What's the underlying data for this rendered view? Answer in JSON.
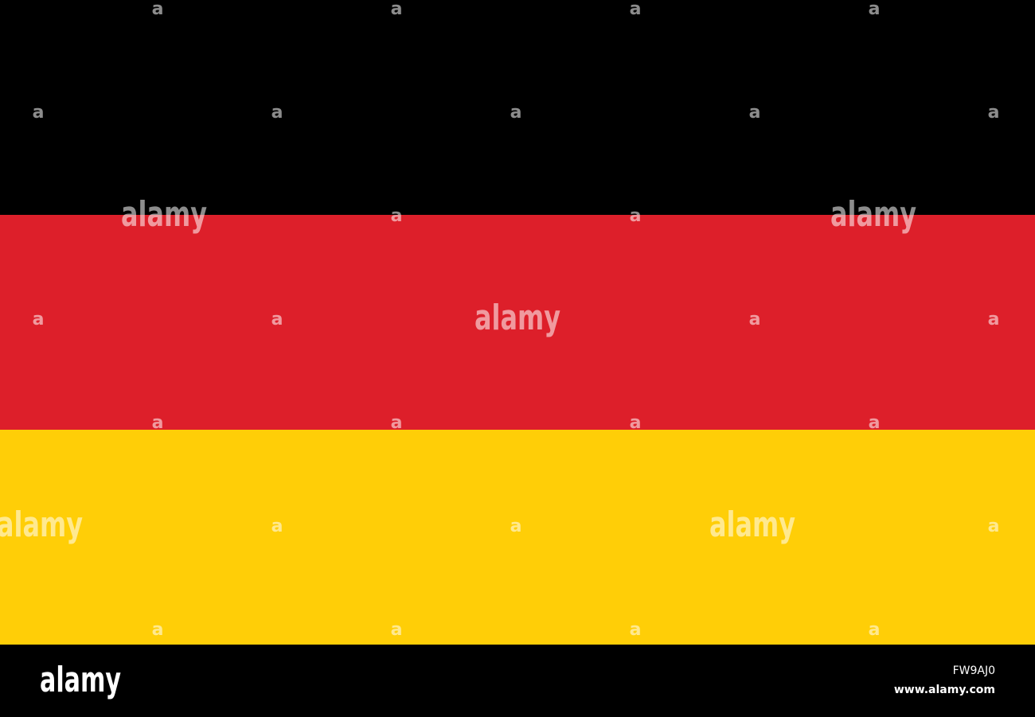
{
  "watermark": {
    "word": "alamy",
    "letter": "a"
  },
  "footer": {
    "brand": "alamy",
    "image_id": "FW9AJ0",
    "url": "www.alamy.com"
  }
}
